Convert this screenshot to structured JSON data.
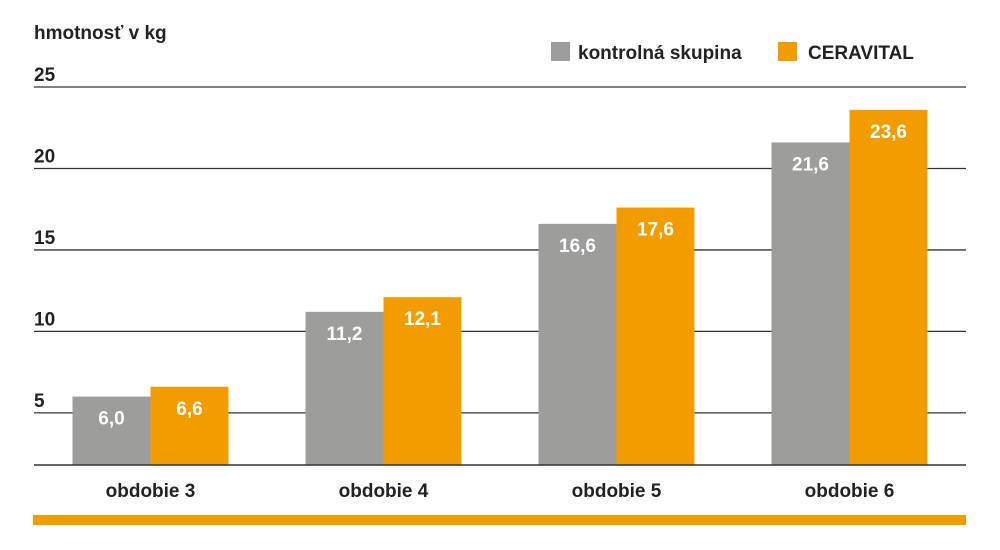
{
  "chart_data": {
    "type": "bar",
    "ylabel": "hmotnosť v kg",
    "categories": [
      "obdobie 3",
      "obdobie 4",
      "obdobie 5",
      "obdobie 6"
    ],
    "series": [
      {
        "name": "kontrolná skupina",
        "values": [
          6.0,
          11.2,
          16.6,
          21.6
        ],
        "labels": [
          "6,0",
          "11,2",
          "16,6",
          "21,6"
        ],
        "color": "#9d9d9c"
      },
      {
        "name": "CERAVITAL",
        "values": [
          6.6,
          12.1,
          17.6,
          23.6
        ],
        "labels": [
          "6,6",
          "12,1",
          "17,6",
          "23,6"
        ],
        "color": "#f39c00"
      }
    ],
    "yticks": [
      "5",
      "10",
      "15",
      "20",
      "25"
    ],
    "ytick_values": [
      5,
      10,
      15,
      20,
      25
    ],
    "ylim": [
      1.8,
      25
    ],
    "grid": true,
    "legend_position": "top-right",
    "colors": {
      "gridline": "#333333",
      "text": "#222222",
      "footer_bar": "#f39c00",
      "data_label": "#ffffff"
    }
  }
}
